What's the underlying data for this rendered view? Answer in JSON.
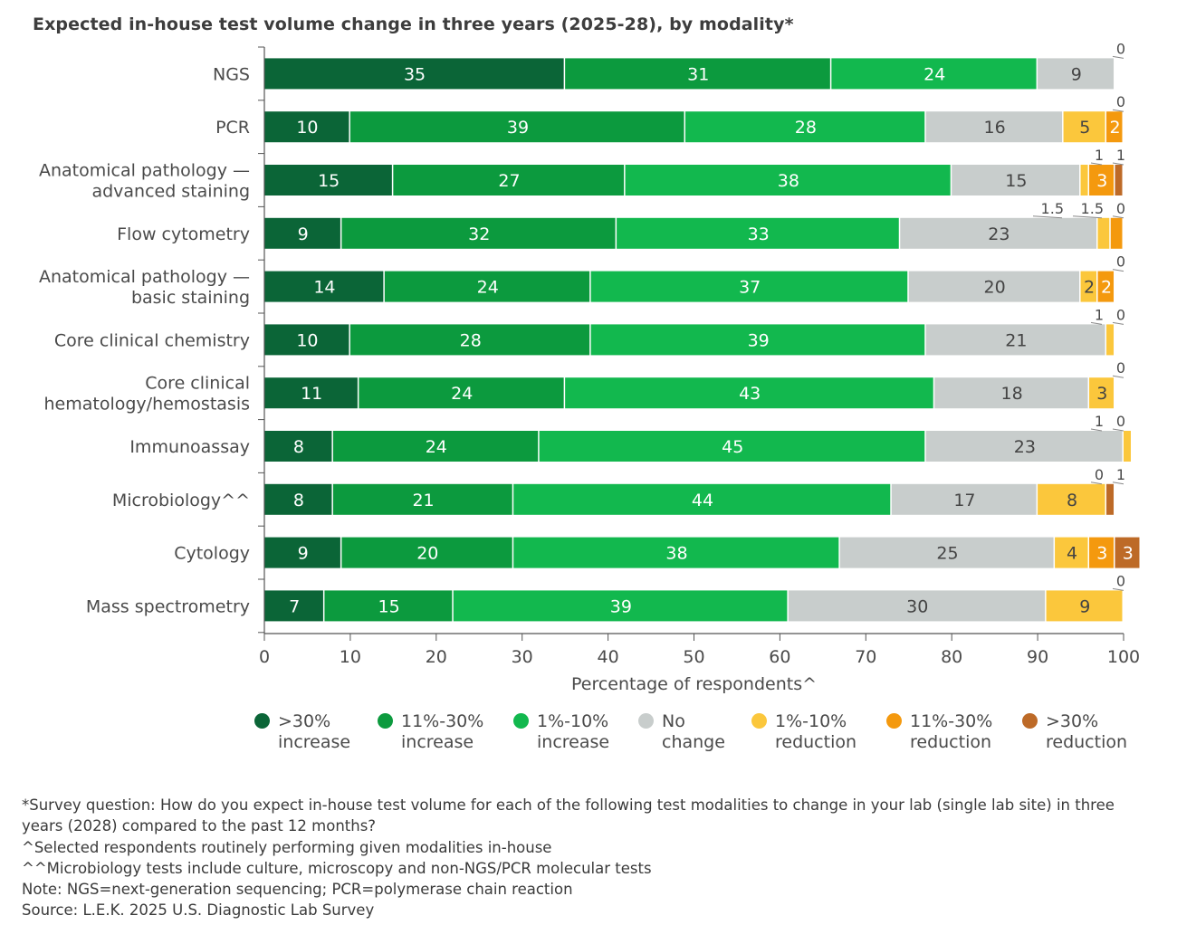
{
  "title": "Expected in-house test volume change in three years (2025-28), by modality*",
  "chart_data": {
    "type": "bar",
    "orientation": "horizontal",
    "stacked": true,
    "title": "Expected in-house test volume change in three years (2025-28), by modality*",
    "xlabel": "Percentage of respondents^",
    "ylabel": "",
    "xlim": [
      0,
      100
    ],
    "xticks": [
      "0",
      "10",
      "20",
      "30",
      "40",
      "50",
      "60",
      "70",
      "80",
      "90",
      "100"
    ],
    "categories": [
      "NGS",
      "PCR",
      "Anatomical pathology —\nadvanced staining",
      "Flow cytometry",
      "Anatomical pathology —\nbasic staining",
      "Core clinical chemistry",
      "Core clinical\nhematology/hemostasis",
      "Immunoassay",
      "Microbiology^^",
      "Cytology",
      "Mass spectrometry"
    ],
    "series": [
      {
        "name": ">30%\nincrease",
        "color": "#0b6537",
        "values": [
          35,
          10,
          15,
          9,
          14,
          10,
          11,
          8,
          8,
          9,
          7
        ]
      },
      {
        "name": "11%-30%\nincrease",
        "color": "#0c9a3e",
        "values": [
          31,
          39,
          27,
          32,
          24,
          28,
          24,
          24,
          21,
          20,
          15
        ]
      },
      {
        "name": "1%-10%\nincrease",
        "color": "#12b84e",
        "values": [
          24,
          28,
          38,
          33,
          37,
          39,
          43,
          45,
          44,
          38,
          39
        ]
      },
      {
        "name": "No\nchange",
        "color": "#c8cdcc",
        "values": [
          9,
          16,
          15,
          23,
          20,
          21,
          18,
          23,
          17,
          25,
          30
        ]
      },
      {
        "name": "1%-10%\nreduction",
        "color": "#fbc73c",
        "values": [
          0,
          5,
          1,
          1.5,
          2,
          1,
          3,
          1,
          8,
          4,
          9
        ]
      },
      {
        "name": "11%-30%\nreduction",
        "color": "#f4990e",
        "values": [
          0,
          2,
          3,
          1.5,
          2,
          0,
          0,
          0,
          0,
          3,
          0
        ]
      },
      {
        "name": ">30%\nreduction",
        "color": "#bd6a27",
        "values": [
          0,
          0,
          1,
          0,
          0,
          0,
          0,
          0,
          1,
          3,
          0
        ]
      }
    ],
    "annotations": [
      {
        "row": 0,
        "text": "0"
      },
      {
        "row": 1,
        "text": "0"
      },
      {
        "row": 2,
        "text": "1"
      },
      {
        "row": 2,
        "text": "1"
      },
      {
        "row": 3,
        "text": "1.5"
      },
      {
        "row": 3,
        "text": "1.5"
      },
      {
        "row": 3,
        "text": "0"
      },
      {
        "row": 4,
        "text": "0"
      },
      {
        "row": 5,
        "text": "1"
      },
      {
        "row": 5,
        "text": "0"
      },
      {
        "row": 6,
        "text": "0"
      },
      {
        "row": 7,
        "text": "1"
      },
      {
        "row": 7,
        "text": "0"
      },
      {
        "row": 8,
        "text": "0"
      },
      {
        "row": 8,
        "text": "1"
      },
      {
        "row": 10,
        "text": "0"
      }
    ]
  },
  "legend": [
    {
      "label": ">30%\nincrease",
      "color": "#0b6537"
    },
    {
      "label": "11%-30%\nincrease",
      "color": "#0c9a3e"
    },
    {
      "label": "1%-10%\nincrease",
      "color": "#12b84e"
    },
    {
      "label": "No\nchange",
      "color": "#c8cdcc"
    },
    {
      "label": "1%-10%\nreduction",
      "color": "#fbc73c"
    },
    {
      "label": "11%-30%\nreduction",
      "color": "#f4990e"
    },
    {
      "label": ">30%\nreduction",
      "color": "#bd6a27"
    }
  ],
  "notes": [
    "*Survey question: How do you expect in-house test volume for each of the following test modalities to change in your lab (single lab site) in three years (2028) compared to the past 12 months?",
    "^Selected respondents routinely performing given modalities in-house",
    "^^Microbiology tests include culture, microscopy and non-NGS/PCR molecular tests",
    "Note: NGS=next-generation sequencing; PCR=polymerase chain reaction",
    "Source: L.E.K. 2025 U.S. Diagnostic Lab Survey"
  ]
}
